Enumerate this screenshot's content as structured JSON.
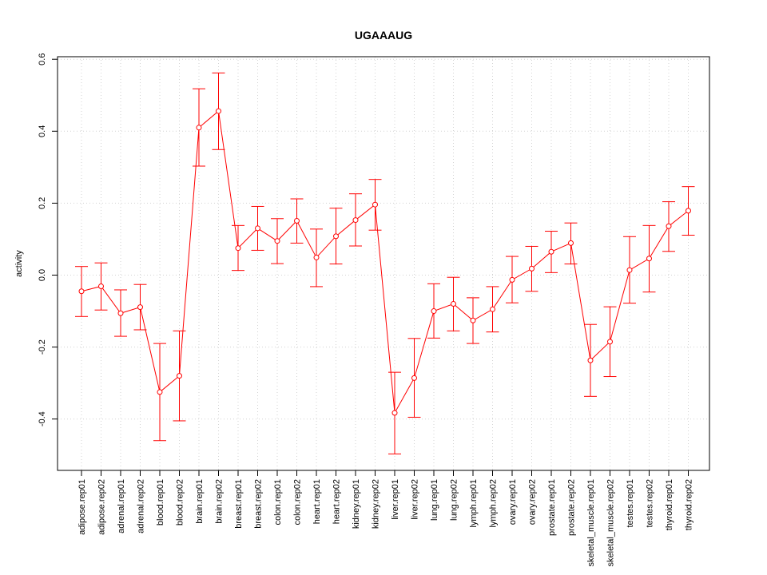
{
  "chart_data": {
    "type": "line",
    "title": "UGAAAUG",
    "xlabel": "",
    "ylabel": "activity",
    "ylim": [
      -0.54,
      0.6
    ],
    "yticks": [
      -0.4,
      -0.2,
      0.0,
      0.2,
      0.4,
      0.6
    ],
    "ytick_labels": [
      "-0.4",
      "-0.2",
      "0.0",
      "0.2",
      "0.4",
      "0.6"
    ],
    "grid": true,
    "categories": [
      "adipose.rep01",
      "adipose.rep02",
      "adrenal.rep01",
      "adrenal.rep02",
      "blood.rep01",
      "blood.rep02",
      "brain.rep01",
      "brain.rep02",
      "breast.rep01",
      "breast.rep02",
      "colon.rep01",
      "colon.rep02",
      "heart.rep01",
      "heart.rep02",
      "kidney.rep01",
      "kidney.rep02",
      "liver.rep01",
      "liver.rep02",
      "lung.rep01",
      "lung.rep02",
      "lymph.rep01",
      "lymph.rep02",
      "ovary.rep01",
      "ovary.rep02",
      "prostate.rep01",
      "prostate.rep02",
      "skeletal_muscle.rep01",
      "skeletal_muscle.rep02",
      "testes.rep01",
      "testes.rep02",
      "thyroid.rep01",
      "thyroid.rep02"
    ],
    "series": [
      {
        "color": "#ff0000",
        "values": [
          -0.045,
          -0.031,
          -0.106,
          -0.089,
          -0.325,
          -0.28,
          0.41,
          0.456,
          0.075,
          0.13,
          0.095,
          0.151,
          0.049,
          0.108,
          0.153,
          0.196,
          -0.383,
          -0.286,
          -0.1,
          -0.08,
          -0.126,
          -0.095,
          -0.013,
          0.018,
          0.065,
          0.089,
          -0.237,
          -0.185,
          0.014,
          0.046,
          0.136,
          0.179
        ],
        "lower": [
          -0.115,
          -0.097,
          -0.17,
          -0.152,
          -0.46,
          -0.405,
          0.303,
          0.349,
          0.013,
          0.069,
          0.032,
          0.089,
          -0.032,
          0.031,
          0.081,
          0.125,
          -0.497,
          -0.395,
          -0.175,
          -0.155,
          -0.19,
          -0.158,
          -0.077,
          -0.045,
          0.007,
          0.031,
          -0.337,
          -0.282,
          -0.078,
          -0.047,
          0.066,
          0.111
        ],
        "upper": [
          0.024,
          0.034,
          -0.041,
          -0.026,
          -0.19,
          -0.155,
          0.518,
          0.562,
          0.138,
          0.191,
          0.157,
          0.212,
          0.128,
          0.186,
          0.226,
          0.266,
          -0.27,
          -0.176,
          -0.024,
          -0.006,
          -0.063,
          -0.032,
          0.052,
          0.08,
          0.122,
          0.145,
          -0.137,
          -0.088,
          0.107,
          0.138,
          0.204,
          0.246
        ]
      }
    ]
  }
}
